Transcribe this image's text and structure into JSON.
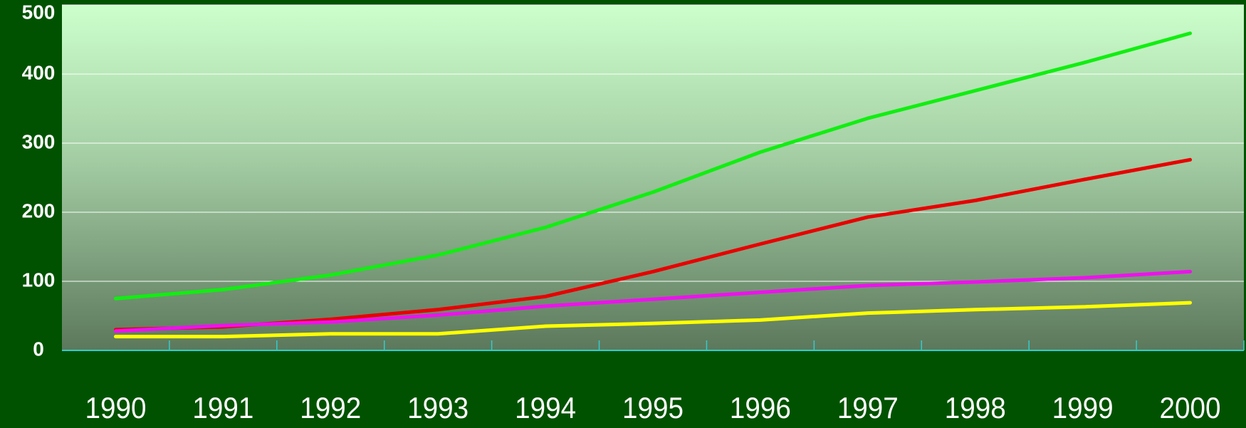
{
  "chart_data": {
    "type": "line",
    "categories": [
      "1990",
      "1991",
      "1992",
      "1993",
      "1994",
      "1995",
      "1996",
      "1997",
      "1998",
      "1999",
      "2000"
    ],
    "series": [
      {
        "color": "#11ee11",
        "values": [
          75,
          88,
          109,
          138,
          178,
          229,
          287,
          336,
          376,
          416,
          459
        ]
      },
      {
        "color": "#e80000",
        "values": [
          30,
          34,
          45,
          59,
          78,
          114,
          154,
          193,
          217,
          247,
          276
        ]
      },
      {
        "color": "#ee11ee",
        "values": [
          28,
          36,
          41,
          51,
          64,
          74,
          84,
          94,
          99,
          105,
          114
        ]
      },
      {
        "color": "#ffff00",
        "values": [
          20,
          20,
          24,
          24,
          35,
          39,
          44,
          54,
          59,
          63,
          69
        ]
      }
    ],
    "ylim": [
      0,
      500
    ],
    "yticks": [
      0,
      100,
      200,
      300,
      400,
      500
    ],
    "grid": true
  }
}
